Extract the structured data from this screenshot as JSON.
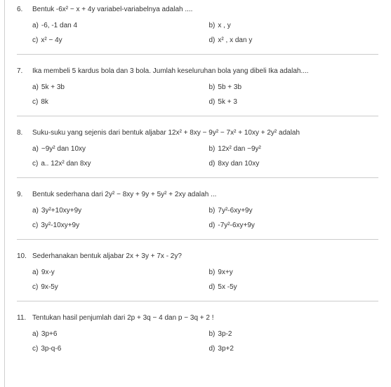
{
  "questions": [
    {
      "num": "6.",
      "text": "Bentuk -6x² − x + 4y variabel-variabelnya adalah ....",
      "opts": {
        "a": "-6, -1 dan 4",
        "b": "x , y",
        "c": "x² − 4y",
        "d": "x² , x dan y"
      }
    },
    {
      "num": "7.",
      "text": "Ika membeli 5 kardus bola dan 3 bola. Jumlah keseluruhan bola yang dibeli Ika adalah....",
      "opts": {
        "a": "5k + 3b",
        "b": "5b + 3b",
        "c": "8k",
        "d": "5k + 3"
      }
    },
    {
      "num": "8.",
      "text": "Suku-suku yang sejenis dari bentuk aljabar 12x² + 8xy − 9y² − 7x² + 10xy + 2y² adalah",
      "opts": {
        "a": "−9y² dan 10xy",
        "b": "12x² dan −9y²",
        "c": "a.. 12x² dan 8xy",
        "d": "8xy dan 10xy"
      }
    },
    {
      "num": "9.",
      "text": "Bentuk sederhana dari 2y² − 8xy + 9y + 5y² + 2xy adalah ...",
      "opts": {
        "a": "3y²+10xy+9y",
        "b": "7y²-6xy+9y",
        "c": "3y²-10xy+9y",
        "d": "-7y²-6xy+9y"
      }
    },
    {
      "num": "10.",
      "text": "Sederhanakan bentuk aljabar 2x + 3y + 7x - 2y?",
      "opts": {
        "a": "9x-y",
        "b": "9x+y",
        "c": "9x-5y",
        "d": "5x -5y"
      }
    },
    {
      "num": "11.",
      "text": "Tentukan hasil penjumlah dari 2p + 3q − 4 dan p − 3q + 2 !",
      "opts": {
        "a": "3p+6",
        "b": "3p-2",
        "c": "3p-q-6",
        "d": "3p+2"
      }
    }
  ],
  "labels": {
    "a": "a)",
    "b": "b)",
    "c": "c)",
    "d": "d)"
  }
}
